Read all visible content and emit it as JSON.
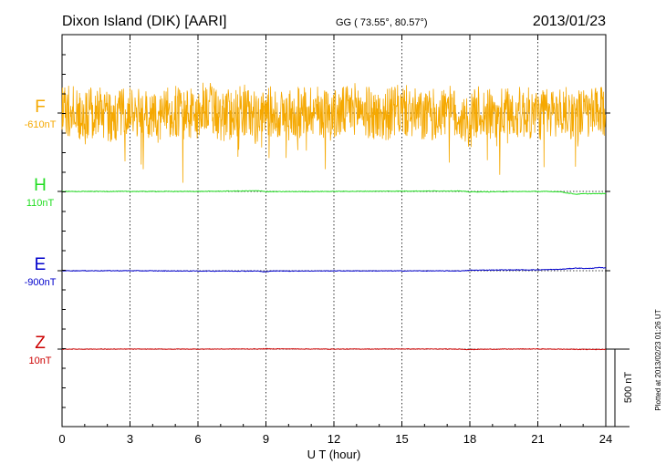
{
  "header": {
    "station": "Dixon Island (DIK)  [AARI]",
    "coords": "GG ( 73.55°,  80.57°)",
    "date": "2013/01/23"
  },
  "footer": {
    "xlabel": "U T (hour)",
    "scale_label": "500 nT",
    "plotted": "Plotted at 2013/02/23 01:26 UT"
  },
  "chart_data": {
    "type": "line",
    "xlabel": "U T (hour)",
    "xlim": [
      0,
      24
    ],
    "xticks": [
      0,
      3,
      6,
      9,
      12,
      15,
      18,
      21,
      24
    ],
    "xtick_labels": [
      "0",
      "3",
      "6",
      "9",
      "12",
      "15",
      "18",
      "21",
      "24"
    ],
    "grid": "dotted vertical lines every 3 hours",
    "scale_bar": {
      "value": 500,
      "unit": "nT"
    },
    "series": [
      {
        "name": "F",
        "baseline_label": "-610nT",
        "color": "#f5a800",
        "description": "highly disturbed, noisy variation around baseline",
        "points": [
          [
            0,
            30
          ],
          [
            0.5,
            60
          ],
          [
            1,
            -150
          ],
          [
            1.5,
            100
          ],
          [
            2,
            -80
          ],
          [
            3,
            50
          ],
          [
            4,
            -120
          ],
          [
            5,
            40
          ],
          [
            6,
            -60
          ],
          [
            6.3,
            200
          ],
          [
            7,
            -90
          ],
          [
            8,
            80
          ],
          [
            8.8,
            -200
          ],
          [
            9,
            60
          ],
          [
            10,
            -70
          ],
          [
            11,
            90
          ],
          [
            12,
            -50
          ],
          [
            13,
            110
          ],
          [
            14,
            -80
          ],
          [
            15,
            70
          ],
          [
            16,
            -100
          ],
          [
            17,
            60
          ],
          [
            18,
            -220
          ],
          [
            18.3,
            40
          ],
          [
            19,
            -60
          ],
          [
            20,
            30
          ],
          [
            21,
            -40
          ],
          [
            22,
            20
          ],
          [
            23,
            -30
          ],
          [
            24,
            0
          ]
        ]
      },
      {
        "name": "H",
        "baseline_label": "110nT",
        "color": "#22dd22",
        "points": [
          [
            0,
            0
          ],
          [
            3,
            0
          ],
          [
            6,
            0
          ],
          [
            8.8,
            4
          ],
          [
            9,
            -2
          ],
          [
            12,
            0
          ],
          [
            15,
            2
          ],
          [
            17.5,
            3
          ],
          [
            18,
            -3
          ],
          [
            19,
            -2
          ],
          [
            21,
            0
          ],
          [
            22,
            -2
          ],
          [
            22.3,
            -10
          ],
          [
            22.7,
            -18
          ],
          [
            23,
            -15
          ],
          [
            24,
            -14
          ]
        ]
      },
      {
        "name": "E",
        "baseline_label": "-900nT",
        "color": "#0000cc",
        "points": [
          [
            0,
            0
          ],
          [
            3,
            0
          ],
          [
            6,
            -2
          ],
          [
            8.7,
            -2
          ],
          [
            8.9,
            -8
          ],
          [
            9.2,
            -2
          ],
          [
            12,
            -1
          ],
          [
            15,
            -1
          ],
          [
            17.7,
            -1
          ],
          [
            18,
            3
          ],
          [
            19,
            5
          ],
          [
            21,
            6
          ],
          [
            22,
            9
          ],
          [
            22.7,
            17
          ],
          [
            23.2,
            14
          ],
          [
            23.7,
            20
          ],
          [
            24,
            18
          ]
        ]
      },
      {
        "name": "Z",
        "baseline_label": "10nT",
        "color": "#cc0000",
        "points": [
          [
            0,
            0
          ],
          [
            3,
            0
          ],
          [
            6,
            0
          ],
          [
            8.8,
            1
          ],
          [
            9,
            2
          ],
          [
            12,
            0
          ],
          [
            15,
            1
          ],
          [
            17.6,
            0
          ],
          [
            18,
            -3
          ],
          [
            18.4,
            -1
          ],
          [
            21,
            1
          ],
          [
            22.5,
            -1
          ],
          [
            23,
            -2
          ],
          [
            24,
            -2
          ]
        ]
      }
    ]
  }
}
